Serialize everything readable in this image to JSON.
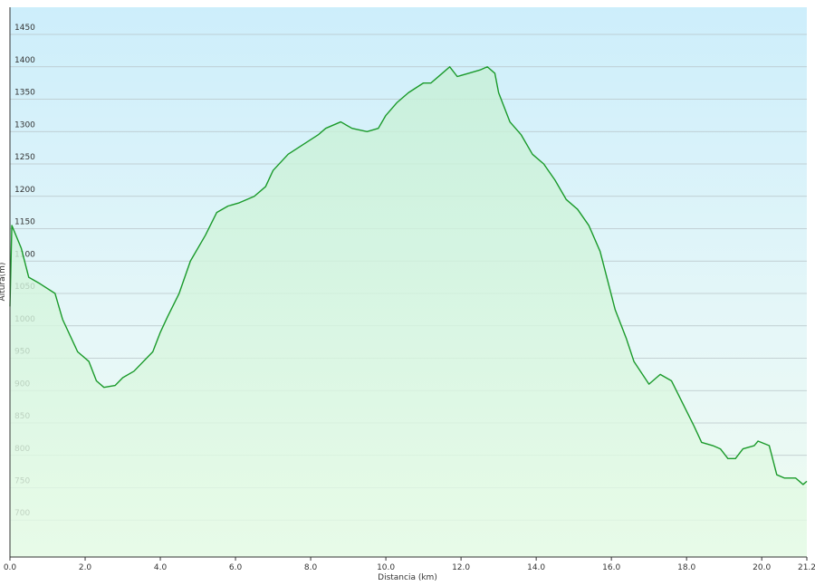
{
  "chart_data": {
    "type": "area",
    "x_label": "Distancia  (km)",
    "y_label": "Altura(m)",
    "color": "#1a9a2a",
    "grid": true,
    "xlim": [
      0,
      21.2
    ],
    "ylim": [
      643,
      1492
    ],
    "xticks": [
      {
        "value": 0,
        "label": "0.0"
      },
      {
        "value": 2,
        "label": "2.0"
      },
      {
        "value": 4,
        "label": "4.0"
      },
      {
        "value": 6,
        "label": "6.0"
      },
      {
        "value": 8,
        "label": "8.0"
      },
      {
        "value": 10,
        "label": "10.0"
      },
      {
        "value": 12,
        "label": "12.0"
      },
      {
        "value": 14,
        "label": "14.0"
      },
      {
        "value": 16,
        "label": "16.0"
      },
      {
        "value": 18,
        "label": "18.0"
      },
      {
        "value": 20,
        "label": "20.0"
      },
      21.2
    ],
    "yticks": [
      700,
      750,
      800,
      850,
      900,
      950,
      1000,
      1050,
      1100,
      1150,
      1200,
      1250,
      1300,
      1350,
      1400,
      1450
    ],
    "x": [
      0,
      0.05,
      0.3,
      0.5,
      0.8,
      1.2,
      1.4,
      1.8,
      2.1,
      2.3,
      2.5,
      2.8,
      3.0,
      3.3,
      3.8,
      4.0,
      4.2,
      4.5,
      4.8,
      5.2,
      5.5,
      5.8,
      6.1,
      6.5,
      6.8,
      7.0,
      7.4,
      7.8,
      8.2,
      8.4,
      8.8,
      9.1,
      9.5,
      9.8,
      10.0,
      10.3,
      10.6,
      11.0,
      11.2,
      11.5,
      11.7,
      11.9,
      12.2,
      12.5,
      12.7,
      12.9,
      13.0,
      13.3,
      13.6,
      13.9,
      14.2,
      14.5,
      14.8,
      15.1,
      15.4,
      15.7,
      15.9,
      16.1,
      16.4,
      16.6,
      17.0,
      17.3,
      17.6,
      17.9,
      18.2,
      18.4,
      18.7,
      18.9,
      19.1,
      19.3,
      19.5,
      19.8,
      19.9,
      20.2,
      20.4,
      20.6,
      20.9,
      21.1,
      21.2
    ],
    "values": [
      1030,
      1155,
      1120,
      1075,
      1065,
      1050,
      1010,
      960,
      945,
      915,
      905,
      908,
      920,
      930,
      960,
      990,
      1015,
      1050,
      1100,
      1140,
      1175,
      1185,
      1190,
      1200,
      1215,
      1240,
      1265,
      1280,
      1295,
      1305,
      1315,
      1305,
      1300,
      1305,
      1325,
      1345,
      1360,
      1375,
      1375,
      1390,
      1400,
      1385,
      1390,
      1395,
      1400,
      1390,
      1360,
      1315,
      1295,
      1265,
      1250,
      1225,
      1195,
      1180,
      1155,
      1115,
      1070,
      1025,
      980,
      945,
      910,
      925,
      915,
      880,
      845,
      820,
      815,
      810,
      795,
      795,
      810,
      815,
      822,
      815,
      770,
      765,
      765,
      755,
      760
    ]
  }
}
